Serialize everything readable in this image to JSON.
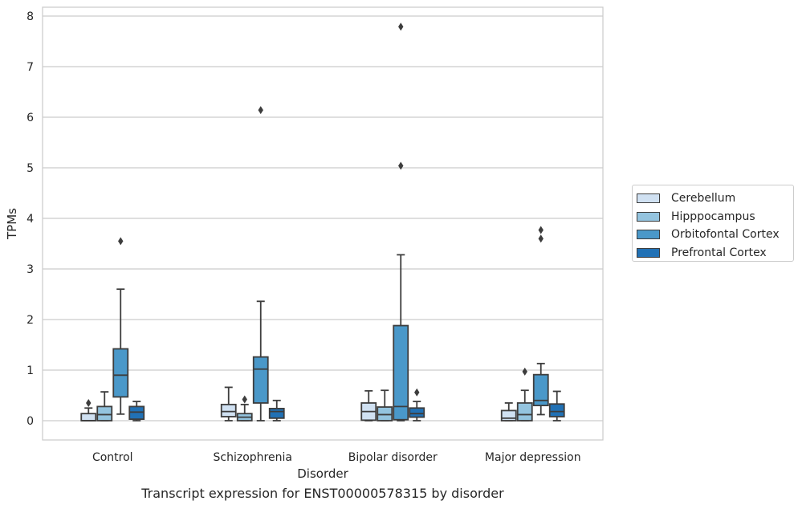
{
  "chart_data": {
    "type": "box",
    "title": "",
    "caption": "Transcript expression for ENST00000578315 by disorder",
    "xlabel": "Disorder",
    "ylabel": "TPMs",
    "ylim": [
      -0.38,
      8.18
    ],
    "yticks": [
      "0",
      "1",
      "2",
      "3",
      "4",
      "5",
      "6",
      "7",
      "8"
    ],
    "categories": [
      "Control",
      "Schizophrenia",
      "Bipolar disorder",
      "Major depression"
    ],
    "grid": "horizontal",
    "legend_placement": "right",
    "series": [
      {
        "name": "Cerebellum",
        "color": "#d0e1f2",
        "boxes": [
          {
            "whislo": 0.0,
            "q1": 0.0,
            "med": 0.0,
            "q3": 0.14,
            "whishi": 0.25,
            "fliers": [
              0.35
            ]
          },
          {
            "whislo": 0.0,
            "q1": 0.08,
            "med": 0.18,
            "q3": 0.32,
            "whishi": 0.66,
            "fliers": []
          },
          {
            "whislo": 0.0,
            "q1": 0.01,
            "med": 0.18,
            "q3": 0.35,
            "whishi": 0.59,
            "fliers": []
          },
          {
            "whislo": 0.0,
            "q1": 0.0,
            "med": 0.05,
            "q3": 0.2,
            "whishi": 0.35,
            "fliers": []
          }
        ]
      },
      {
        "name": "Hipppocampus",
        "color": "#94c4df",
        "boxes": [
          {
            "whislo": 0.0,
            "q1": 0.0,
            "med": 0.12,
            "q3": 0.28,
            "whishi": 0.57,
            "fliers": []
          },
          {
            "whislo": 0.0,
            "q1": 0.0,
            "med": 0.07,
            "q3": 0.14,
            "whishi": 0.32,
            "fliers": [
              0.42
            ]
          },
          {
            "whislo": 0.0,
            "q1": 0.0,
            "med": 0.12,
            "q3": 0.27,
            "whishi": 0.6,
            "fliers": []
          },
          {
            "whislo": 0.0,
            "q1": 0.0,
            "med": 0.12,
            "q3": 0.35,
            "whishi": 0.6,
            "fliers": [
              0.97
            ]
          }
        ]
      },
      {
        "name": "Orbitofontal Cortex",
        "color": "#4a98c9",
        "boxes": [
          {
            "whislo": 0.13,
            "q1": 0.47,
            "med": 0.9,
            "q3": 1.42,
            "whishi": 2.6,
            "fliers": [
              3.55
            ]
          },
          {
            "whislo": 0.0,
            "q1": 0.35,
            "med": 1.02,
            "q3": 1.26,
            "whishi": 2.36,
            "fliers": [
              6.14
            ]
          },
          {
            "whislo": 0.0,
            "q1": 0.02,
            "med": 0.28,
            "q3": 1.88,
            "whishi": 3.28,
            "fliers": [
              5.04,
              7.79
            ]
          },
          {
            "whislo": 0.12,
            "q1": 0.3,
            "med": 0.4,
            "q3": 0.91,
            "whishi": 1.13,
            "fliers": [
              3.6,
              3.77
            ]
          }
        ]
      },
      {
        "name": "Prefrontal Cortex",
        "color": "#2171b5",
        "boxes": [
          {
            "whislo": 0.0,
            "q1": 0.03,
            "med": 0.17,
            "q3": 0.28,
            "whishi": 0.38,
            "fliers": []
          },
          {
            "whislo": 0.0,
            "q1": 0.05,
            "med": 0.18,
            "q3": 0.24,
            "whishi": 0.4,
            "fliers": []
          },
          {
            "whislo": 0.0,
            "q1": 0.07,
            "med": 0.14,
            "q3": 0.25,
            "whishi": 0.38,
            "fliers": [
              0.56
            ]
          },
          {
            "whislo": 0.0,
            "q1": 0.08,
            "med": 0.18,
            "q3": 0.33,
            "whishi": 0.58,
            "fliers": []
          }
        ]
      }
    ]
  }
}
